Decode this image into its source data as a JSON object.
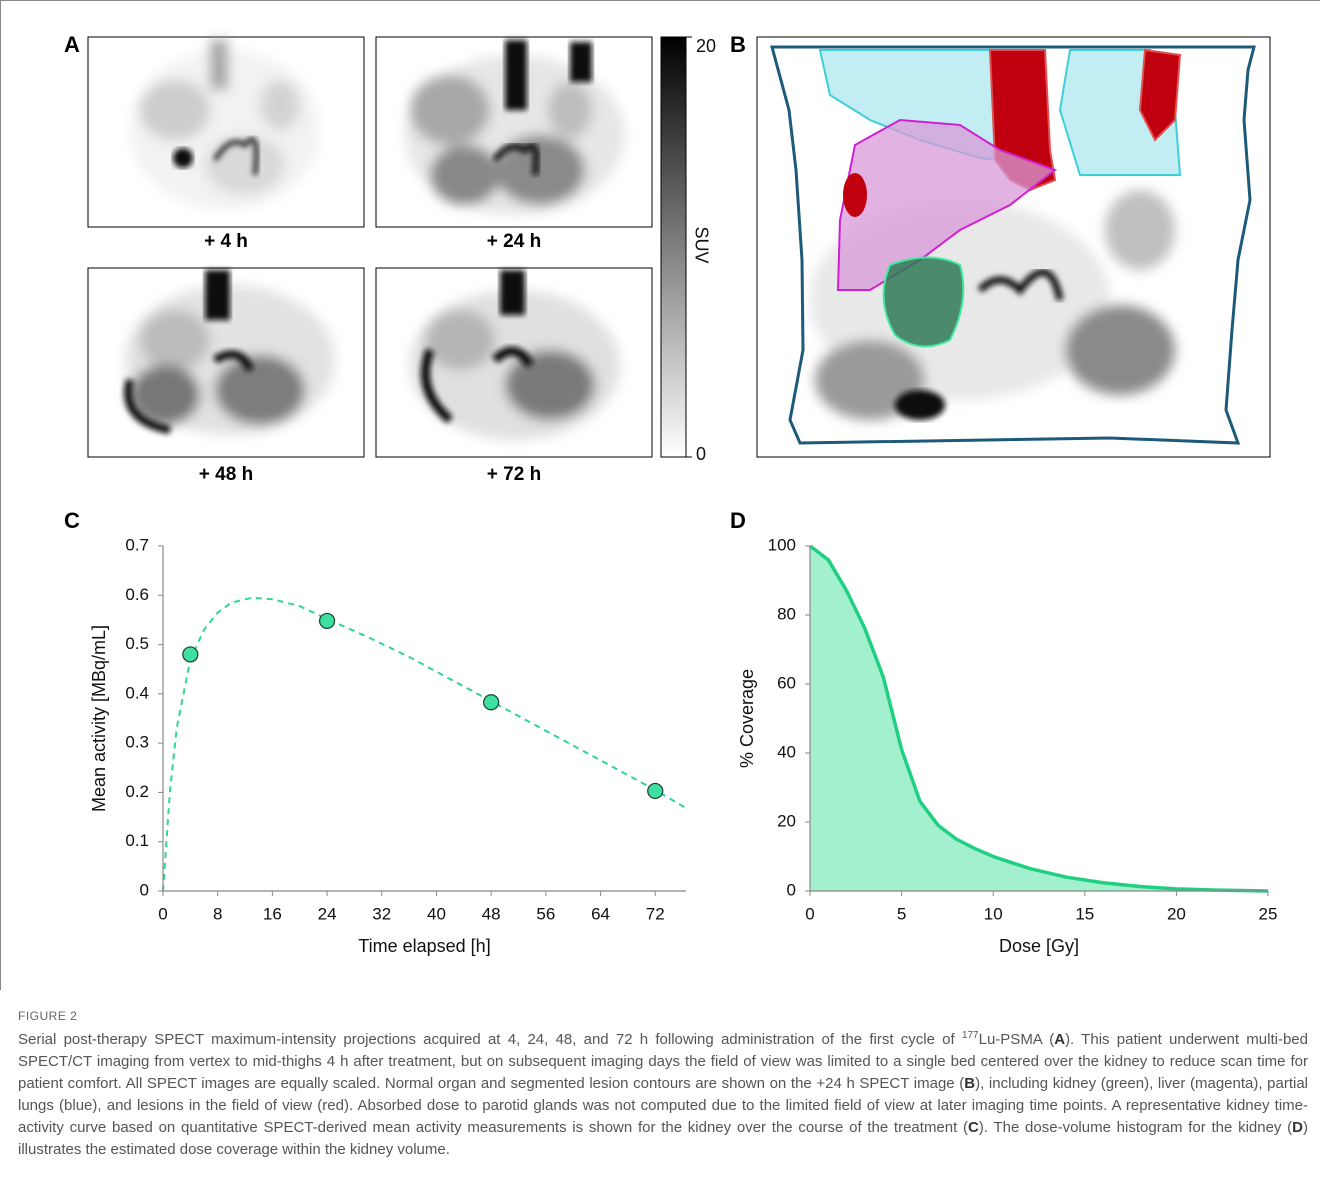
{
  "figure": {
    "panel_labels": [
      "A",
      "B",
      "C",
      "D"
    ],
    "image_labels": [
      "+ 4 h",
      "+ 24 h",
      "+ 48 h",
      "+ 72 h"
    ],
    "colorbar": {
      "label": "SUV",
      "ticks": [
        0,
        20
      ],
      "lim": [
        0,
        20
      ]
    },
    "caption": {
      "heading": "FIGURE 2",
      "segments": [
        "Serial post-therapy SPECT maximum-intensity projections acquired at 4, 24, 48, and 72 h following administration of the first cycle of ",
        "177",
        "Lu-PSMA (",
        "A",
        "). This patient underwent multi-bed SPECT/CT imaging from vertex to mid-thighs 4 h after treatment, but on subsequent imaging days the field of view was limited to a single bed centered over the kidney to reduce scan time for patient comfort. All SPECT images are equally scaled. Normal organ and segmented lesion contours are shown on the +24 h SPECT image (",
        "B",
        "), including kidney (green), liver (magenta), partial lungs (blue), and lesions in the field of view (red). Absorbed dose to parotid glands was not computed due to the limited field of view at later imaging time points. A representative kidney time-activity curve based on quantitative SPECT-derived mean activity measurements is shown for the kidney over the course of the treatment (",
        "C",
        "). The dose-volume histogram for the kidney (",
        "D",
        ") illustrates the estimated dose coverage within the kidney volume."
      ]
    }
  },
  "chart_data": [
    {
      "type": "line",
      "xlabel": "Time elapsed [h]",
      "ylabel": "Mean activity [MBq/mL]",
      "xlim": [
        0,
        76.5
      ],
      "ylim": [
        0,
        0.7
      ],
      "xticks": [
        0,
        8,
        16,
        24,
        32,
        40,
        48,
        56,
        64,
        72
      ],
      "yticks": [
        0,
        0.1,
        0.2,
        0.3,
        0.4,
        0.5,
        0.6,
        0.7
      ],
      "series": [
        {
          "kind": "line",
          "dashed": true,
          "color": "#2fd68f",
          "x": [
            0,
            1,
            2,
            4,
            6,
            8,
            10,
            13,
            16,
            20,
            24,
            30,
            36,
            42,
            48,
            54,
            60,
            66,
            72,
            76.5
          ],
          "values": [
            0,
            0.2,
            0.33,
            0.47,
            0.53,
            0.565,
            0.585,
            0.595,
            0.592,
            0.578,
            0.552,
            0.515,
            0.475,
            0.43,
            0.385,
            0.34,
            0.295,
            0.25,
            0.205,
            0.168
          ]
        },
        {
          "kind": "scatter",
          "color": "#3ee0a0",
          "x": [
            4,
            24,
            48,
            72
          ],
          "values": [
            0.48,
            0.548,
            0.383,
            0.203
          ]
        }
      ]
    },
    {
      "type": "area",
      "xlabel": "Dose [Gy]",
      "ylabel": "% Coverage",
      "xlim": [
        0,
        25
      ],
      "ylim": [
        0,
        100
      ],
      "xticks": [
        0,
        5,
        10,
        15,
        20,
        25
      ],
      "yticks": [
        0,
        20,
        40,
        60,
        80,
        100
      ],
      "series": [
        {
          "kind": "area",
          "color": "#1fd080",
          "fill": "#a3f0cf",
          "x": [
            0,
            1,
            2,
            3,
            4,
            5,
            6,
            7,
            8,
            9,
            10,
            12,
            14,
            16,
            18,
            20,
            22,
            25
          ],
          "values": [
            100,
            96,
            87,
            76,
            62,
            41,
            26,
            19,
            15,
            12.3,
            10,
            6.5,
            4,
            2.4,
            1.3,
            0.6,
            0.3,
            0
          ]
        }
      ]
    }
  ]
}
